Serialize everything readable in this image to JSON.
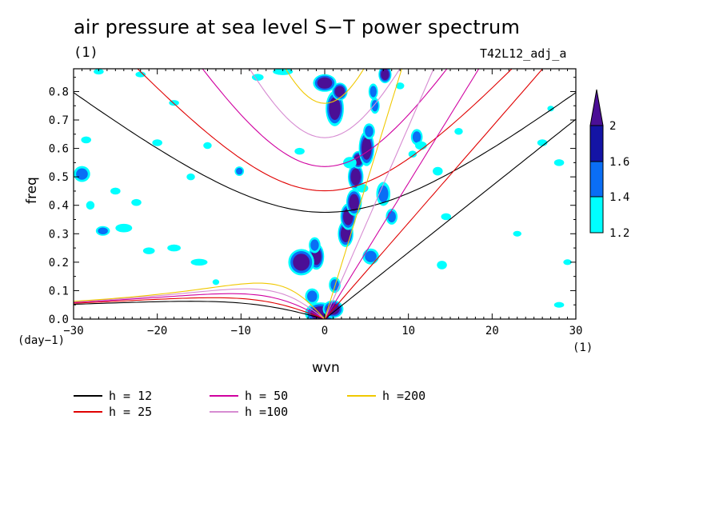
{
  "title": "air pressure at sea level S−T power spectrum",
  "subtitle_left": "(1)",
  "subtitle_right": "T42L12_adj_a",
  "chart_data": {
    "type": "heatmap",
    "xlabel": "wvn",
    "ylabel": "freq",
    "x_unit": "(1)",
    "y_unit": "(day−1)",
    "xlim": [
      -30,
      30
    ],
    "ylim": [
      0,
      0.88
    ],
    "xticks": [
      -30,
      -20,
      -10,
      0,
      10,
      20,
      30
    ],
    "xtick_labels": [
      "−30",
      "−20",
      "−10",
      "0",
      "10",
      "20",
      "30"
    ],
    "yticks": [
      0.0,
      0.1,
      0.2,
      0.3,
      0.4,
      0.5,
      0.6,
      0.7,
      0.8
    ],
    "ytick_labels": [
      "0.0",
      "0.1",
      "0.2",
      "0.3",
      "0.4",
      "0.5",
      "0.6",
      "0.7",
      "0.8"
    ],
    "colorbar": {
      "levels": [
        1.2,
        1.4,
        1.6,
        2
      ],
      "labels": [
        "1.2",
        "1.4",
        "1.6",
        "2"
      ],
      "colors": [
        "#00ffff",
        "#0a6ef5",
        "#1414a5",
        "#4b0f96"
      ]
    },
    "dispersion_curves": [
      {
        "name": "h = 12",
        "h": 12,
        "color": "#000000"
      },
      {
        "name": "h = 25",
        "h": 25,
        "color": "#e00000"
      },
      {
        "name": "h = 50",
        "h": 50,
        "color": "#d000a0"
      },
      {
        "name": "h =100",
        "h": 100,
        "color": "#d78cd2"
      },
      {
        "name": "h =200",
        "h": 200,
        "color": "#f0c800"
      }
    ],
    "blobs": [
      {
        "x": -0.5,
        "y": 0.02,
        "rx": 1.2,
        "ry": 0.025,
        "v": 2
      },
      {
        "x": 1.0,
        "y": 0.035,
        "rx": 0.8,
        "ry": 0.02,
        "v": 2
      },
      {
        "x": -1.5,
        "y": 0.08,
        "rx": 0.6,
        "ry": 0.02,
        "v": 1.6
      },
      {
        "x": -1.0,
        "y": 0.22,
        "rx": 0.6,
        "ry": 0.03,
        "v": 2
      },
      {
        "x": -2.8,
        "y": 0.2,
        "rx": 1.0,
        "ry": 0.03,
        "v": 2
      },
      {
        "x": -1.2,
        "y": 0.26,
        "rx": 0.5,
        "ry": 0.02,
        "v": 1.6
      },
      {
        "x": 1.2,
        "y": 0.12,
        "rx": 0.5,
        "ry": 0.02,
        "v": 1.6
      },
      {
        "x": 2.5,
        "y": 0.3,
        "rx": 0.6,
        "ry": 0.03,
        "v": 2
      },
      {
        "x": 2.8,
        "y": 0.36,
        "rx": 0.6,
        "ry": 0.03,
        "v": 2
      },
      {
        "x": 3.5,
        "y": 0.41,
        "rx": 0.6,
        "ry": 0.03,
        "v": 2
      },
      {
        "x": 3.7,
        "y": 0.5,
        "rx": 0.6,
        "ry": 0.03,
        "v": 2
      },
      {
        "x": 4.0,
        "y": 0.56,
        "rx": 0.5,
        "ry": 0.02,
        "v": 2
      },
      {
        "x": 5.0,
        "y": 0.6,
        "rx": 0.6,
        "ry": 0.04,
        "v": 2
      },
      {
        "x": 5.3,
        "y": 0.66,
        "rx": 0.5,
        "ry": 0.02,
        "v": 1.6
      },
      {
        "x": 6.0,
        "y": 0.75,
        "rx": 0.4,
        "ry": 0.02,
        "v": 1.6
      },
      {
        "x": 5.8,
        "y": 0.8,
        "rx": 0.4,
        "ry": 0.02,
        "v": 1.6
      },
      {
        "x": 1.2,
        "y": 0.74,
        "rx": 0.7,
        "ry": 0.04,
        "v": 2
      },
      {
        "x": 1.8,
        "y": 0.8,
        "rx": 0.6,
        "ry": 0.02,
        "v": 2
      },
      {
        "x": 0.0,
        "y": 0.83,
        "rx": 0.9,
        "ry": 0.02,
        "v": 2
      },
      {
        "x": 7.2,
        "y": 0.86,
        "rx": 0.5,
        "ry": 0.02,
        "v": 2
      },
      {
        "x": 7.0,
        "y": 0.44,
        "rx": 0.6,
        "ry": 0.03,
        "v": 1.6
      },
      {
        "x": 8.0,
        "y": 0.36,
        "rx": 0.5,
        "ry": 0.02,
        "v": 1.6
      },
      {
        "x": 5.5,
        "y": 0.22,
        "rx": 0.7,
        "ry": 0.02,
        "v": 1.6
      },
      {
        "x": 11.0,
        "y": 0.64,
        "rx": 0.5,
        "ry": 0.02,
        "v": 1.6
      },
      {
        "x": 11.5,
        "y": 0.61,
        "rx": 0.7,
        "ry": 0.015,
        "v": 1.4
      },
      {
        "x": 13.5,
        "y": 0.52,
        "rx": 0.6,
        "ry": 0.015,
        "v": 1.4
      },
      {
        "x": 14.0,
        "y": 0.19,
        "rx": 0.6,
        "ry": 0.015,
        "v": 1.4
      },
      {
        "x": -10.2,
        "y": 0.52,
        "rx": 0.4,
        "ry": 0.012,
        "v": 1.6
      },
      {
        "x": -13.0,
        "y": 0.13,
        "rx": 0.4,
        "ry": 0.01,
        "v": 1.4
      },
      {
        "x": -18.0,
        "y": 0.25,
        "rx": 0.8,
        "ry": 0.012,
        "v": 1.4
      },
      {
        "x": -21.0,
        "y": 0.24,
        "rx": 0.7,
        "ry": 0.012,
        "v": 1.4
      },
      {
        "x": -15.0,
        "y": 0.2,
        "rx": 1.0,
        "ry": 0.012,
        "v": 1.4
      },
      {
        "x": -24.0,
        "y": 0.32,
        "rx": 1.0,
        "ry": 0.015,
        "v": 1.4
      },
      {
        "x": -26.5,
        "y": 0.31,
        "rx": 0.6,
        "ry": 0.012,
        "v": 1.6
      },
      {
        "x": -29.0,
        "y": 0.51,
        "rx": 0.7,
        "ry": 0.02,
        "v": 1.6
      },
      {
        "x": -28.0,
        "y": 0.4,
        "rx": 0.5,
        "ry": 0.015,
        "v": 1.4
      },
      {
        "x": -22.5,
        "y": 0.41,
        "rx": 0.6,
        "ry": 0.012,
        "v": 1.4
      },
      {
        "x": -25.0,
        "y": 0.45,
        "rx": 0.6,
        "ry": 0.012,
        "v": 1.4
      },
      {
        "x": -28.5,
        "y": 0.63,
        "rx": 0.6,
        "ry": 0.012,
        "v": 1.4
      },
      {
        "x": -27.0,
        "y": 0.87,
        "rx": 0.6,
        "ry": 0.01,
        "v": 1.4
      },
      {
        "x": -22.0,
        "y": 0.86,
        "rx": 0.6,
        "ry": 0.01,
        "v": 1.4
      },
      {
        "x": -18.0,
        "y": 0.76,
        "rx": 0.6,
        "ry": 0.01,
        "v": 1.4
      },
      {
        "x": -14.0,
        "y": 0.61,
        "rx": 0.5,
        "ry": 0.012,
        "v": 1.4
      },
      {
        "x": -5.0,
        "y": 0.87,
        "rx": 1.2,
        "ry": 0.012,
        "v": 1.4
      },
      {
        "x": 3.0,
        "y": 0.55,
        "rx": 0.8,
        "ry": 0.02,
        "v": 1.4
      },
      {
        "x": 4.5,
        "y": 0.46,
        "rx": 0.7,
        "ry": 0.015,
        "v": 1.4
      },
      {
        "x": 26.0,
        "y": 0.62,
        "rx": 0.6,
        "ry": 0.012,
        "v": 1.4
      },
      {
        "x": 28.0,
        "y": 0.55,
        "rx": 0.6,
        "ry": 0.012,
        "v": 1.4
      },
      {
        "x": 23.0,
        "y": 0.3,
        "rx": 0.5,
        "ry": 0.01,
        "v": 1.4
      },
      {
        "x": 28.0,
        "y": 0.05,
        "rx": 0.6,
        "ry": 0.01,
        "v": 1.4
      },
      {
        "x": 29.0,
        "y": 0.2,
        "rx": 0.5,
        "ry": 0.01,
        "v": 1.4
      },
      {
        "x": 27.0,
        "y": 0.74,
        "rx": 0.4,
        "ry": 0.01,
        "v": 1.4
      },
      {
        "x": -8.0,
        "y": 0.85,
        "rx": 0.7,
        "ry": 0.012,
        "v": 1.4
      },
      {
        "x": -3.0,
        "y": 0.59,
        "rx": 0.6,
        "ry": 0.012,
        "v": 1.4
      },
      {
        "x": 9.0,
        "y": 0.82,
        "rx": 0.5,
        "ry": 0.012,
        "v": 1.4
      },
      {
        "x": 10.5,
        "y": 0.58,
        "rx": 0.5,
        "ry": 0.012,
        "v": 1.4
      },
      {
        "x": 14.5,
        "y": 0.36,
        "rx": 0.6,
        "ry": 0.012,
        "v": 1.4
      },
      {
        "x": 16.0,
        "y": 0.66,
        "rx": 0.5,
        "ry": 0.012,
        "v": 1.4
      },
      {
        "x": -16.0,
        "y": 0.5,
        "rx": 0.5,
        "ry": 0.012,
        "v": 1.4
      },
      {
        "x": -20.0,
        "y": 0.62,
        "rx": 0.6,
        "ry": 0.012,
        "v": 1.4
      }
    ]
  },
  "legend": [
    {
      "label": "h = 12",
      "color": "#000000"
    },
    {
      "label": "h = 25",
      "color": "#e00000"
    },
    {
      "label": "h = 50",
      "color": "#d000a0"
    },
    {
      "label": "h =100",
      "color": "#d78cd2"
    },
    {
      "label": "h =200",
      "color": "#f0c800"
    }
  ]
}
